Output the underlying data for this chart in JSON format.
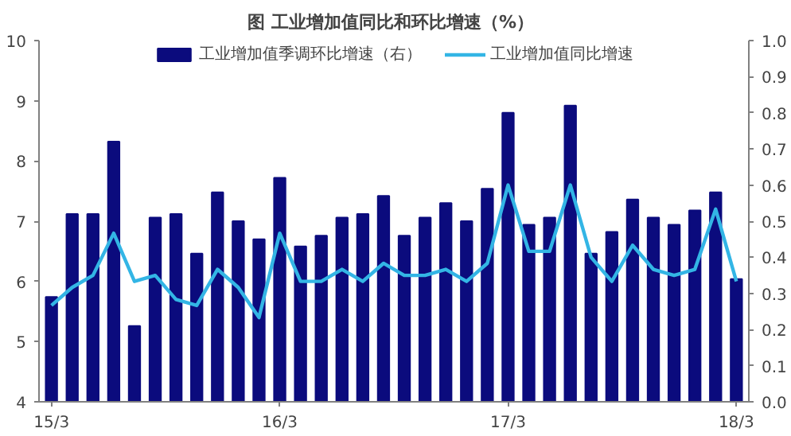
{
  "chart_data": {
    "type": "bar",
    "title": "图  工业增加值同比和环比增速（%）",
    "categories": [
      "15/3",
      null,
      null,
      null,
      null,
      null,
      null,
      null,
      null,
      null,
      null,
      "16/3",
      null,
      null,
      null,
      null,
      null,
      null,
      null,
      null,
      null,
      null,
      "17/3",
      null,
      null,
      null,
      null,
      null,
      null,
      null,
      null,
      null,
      null,
      "18/3"
    ],
    "series": [
      {
        "name": "工业增加值季调环比增速（右）",
        "axis": "y2",
        "color": "#0b0b7d",
        "values": [
          0.29,
          0.52,
          0.52,
          0.72,
          0.21,
          0.51,
          0.52,
          0.41,
          0.58,
          0.5,
          0.45,
          0.62,
          0.43,
          0.46,
          0.51,
          0.52,
          0.57,
          0.46,
          0.51,
          0.55,
          0.5,
          0.59,
          0.8,
          0.49,
          0.51,
          0.82,
          0.41,
          0.47,
          0.56,
          0.51,
          0.49,
          0.53,
          0.58,
          0.34
        ]
      },
      {
        "name": "工业增加值同比增速",
        "type": "line",
        "color": "#33b5e5",
        "values": [
          5.6,
          5.9,
          6.1,
          6.8,
          6.0,
          6.1,
          5.7,
          5.6,
          6.2,
          5.9,
          5.4,
          6.8,
          6.0,
          6.0,
          6.2,
          6.0,
          6.3,
          6.1,
          6.1,
          6.2,
          6.0,
          6.3,
          7.6,
          6.5,
          6.5,
          7.6,
          6.4,
          6.0,
          6.6,
          6.2,
          6.1,
          6.2,
          7.2,
          6.0
        ]
      }
    ],
    "ylim": [
      4,
      10
    ],
    "yticks": [
      4,
      5,
      6,
      7,
      8,
      9,
      10
    ],
    "y2lim": [
      0,
      1
    ],
    "y2ticks": [
      {
        "value": 0,
        "label": "0.0"
      },
      {
        "value": 0.1,
        "label": "0.1"
      },
      {
        "value": 0.2,
        "label": "0.2"
      },
      {
        "value": 0.3,
        "label": "0.3"
      },
      {
        "value": 0.4,
        "label": "0.4"
      },
      {
        "value": 0.5,
        "label": "0.5"
      },
      {
        "value": 0.6,
        "label": "0.6"
      },
      {
        "value": 0.7,
        "label": "0.7"
      },
      {
        "value": 0.8,
        "label": "0.8"
      },
      {
        "value": 0.9,
        "label": "0.9"
      },
      {
        "value": 1,
        "label": "1.0"
      }
    ],
    "legend": "top"
  }
}
